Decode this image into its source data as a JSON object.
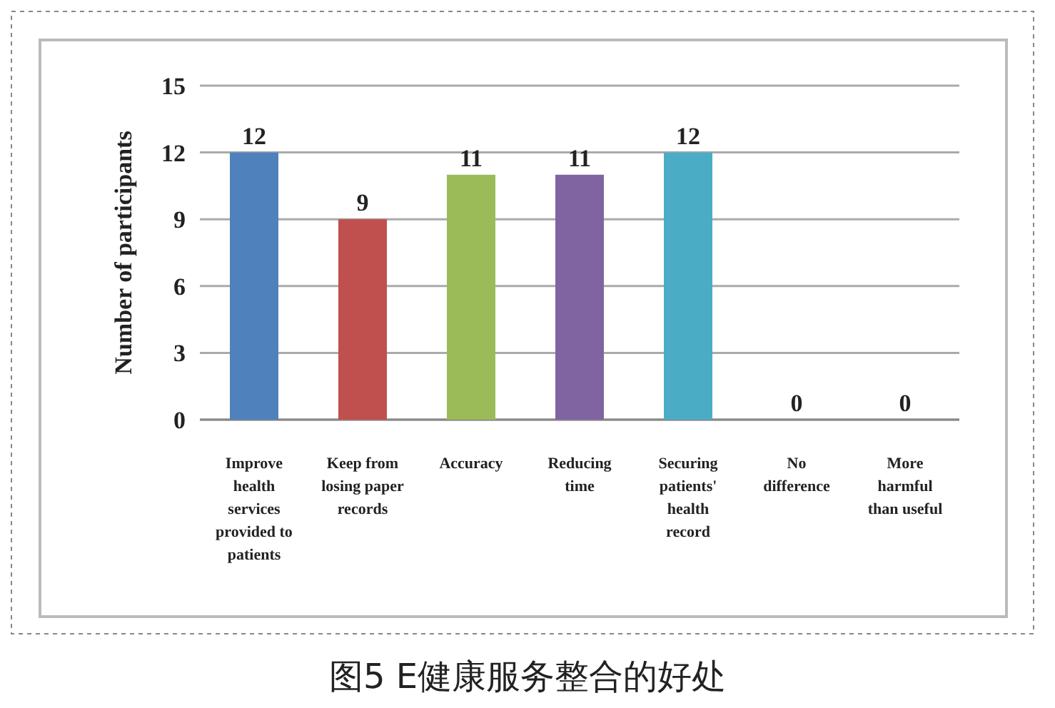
{
  "chart_data": {
    "type": "bar",
    "title": "图5 E健康服务整合的好处",
    "ylabel": "Number of participants",
    "categories": [
      "Improve health services provided to patients",
      "Keep from losing paper records",
      "Accuracy",
      "Reducing time",
      "Securing patients' health record",
      "No difference",
      "More harmful than useful"
    ],
    "values": [
      12,
      9,
      11,
      11,
      12,
      0,
      0
    ],
    "colors": [
      "#4f81bd",
      "#c0504d",
      "#9bbb59",
      "#8064a2",
      "#4bacc6",
      "#4f81bd",
      "#4f81bd"
    ],
    "ylim": [
      0,
      15
    ],
    "yticks": [
      0,
      3,
      6,
      9,
      12,
      15
    ],
    "grid": "y",
    "data_labels": true
  }
}
